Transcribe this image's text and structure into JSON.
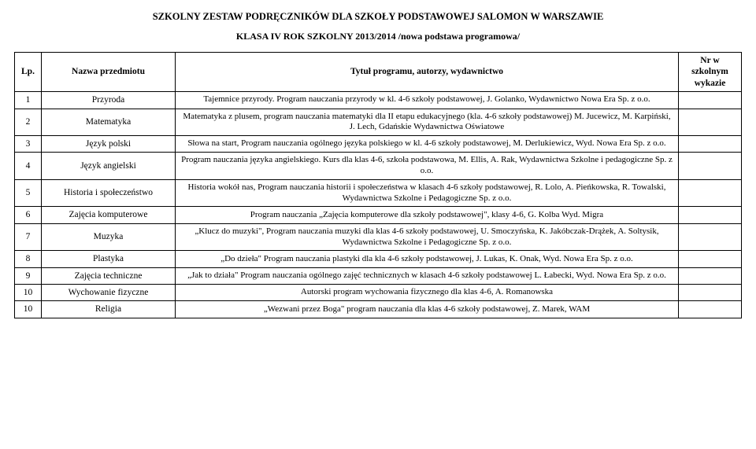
{
  "titles": {
    "main": "SZKOLNY ZESTAW PODRĘCZNIKÓW DLA SZKOŁY PODSTAWOWEJ SALOMON W WARSZAWIE",
    "sub": "KLASA IV ROK SZKOLNY 2013/2014 /nowa podstawa programowa/"
  },
  "headers": {
    "lp": "Lp.",
    "subject": "Nazwa przedmiotu",
    "program": "Tytuł programu, autorzy, wydawnictwo",
    "nr": "Nr w szkolnym wykazie"
  },
  "rows": [
    {
      "lp": "1",
      "subject": "Przyroda",
      "desc": "Tajemnice przyrody. Program nauczania przyrody w kl. 4-6 szkoły podstawowej, J. Golanko, Wydawnictwo Nowa Era Sp. z o.o."
    },
    {
      "lp": "2",
      "subject": "Matematyka",
      "desc": "Matematyka z plusem, program nauczania matematyki dla II etapu edukacyjnego (kla. 4-6 szkoły podstawowej) M. Jucewicz, M. Karpiński, J. Lech, Gdańskie Wydawnictwa Oświatowe"
    },
    {
      "lp": "3",
      "subject": "Język polski",
      "desc": "Słowa na start,  Program nauczania ogólnego języka polskiego w kl. 4-6 szkoły podstawowej, M. Derlukiewicz, Wyd. Nowa Era Sp. z o.o."
    },
    {
      "lp": "4",
      "subject": "Język angielski",
      "desc": "Program nauczania języka angielskiego. Kurs dla klas 4-6, szkoła podstawowa, M. Ellis, A. Rak, Wydawnictwa Szkolne i pedagogiczne Sp. z o.o."
    },
    {
      "lp": "5",
      "subject": "Historia i społeczeństwo",
      "desc": "Historia wokół nas, Program nauczania historii i społeczeństwa w klasach 4-6 szkoły podstawowej, R. Lolo, A. Pieńkowska, R. Towalski, Wydawnictwa Szkolne i Pedagogiczne Sp. z o.o."
    },
    {
      "lp": "6",
      "subject": "Zajęcia komputerowe",
      "desc": "Program nauczania „Zajęcia komputerowe dla szkoły podstawowej\", klasy 4-6, G. Kolba Wyd. Migra"
    },
    {
      "lp": "7",
      "subject": "Muzyka",
      "desc": "„Klucz do muzyki\", Program nauczania muzyki dla klas 4-6 szkoły podstawowej, U. Smoczyńska, K. Jakóbczak-Drążek, A. Soltysik, Wydawnictwa Szkolne i Pedagogiczne Sp. z o.o."
    },
    {
      "lp": "8",
      "subject": "Plastyka",
      "desc": "„Do dzieła\" Program nauczania plastyki dla kla 4-6 szkoły podstawowej, J. Lukas, K. Onak, Wyd. Nowa Era Sp. z o.o."
    },
    {
      "lp": "9",
      "subject": "Zajęcia techniczne",
      "desc": "„Jak to działa\" Program nauczania ogólnego zajęć technicznych w klasach 4-6 szkoły podstawowej L. Łabecki, Wyd. Nowa Era Sp. z o.o."
    },
    {
      "lp": "10",
      "subject": "Wychowanie fizyczne",
      "desc": "Autorski program wychowania fizycznego dla klas 4-6, A. Romanowska"
    },
    {
      "lp": "10",
      "subject": "Religia",
      "desc": "„Wezwani przez Boga\" program nauczania dla klas 4-6 szkoły podstawowej, Z. Marek, WAM"
    }
  ]
}
